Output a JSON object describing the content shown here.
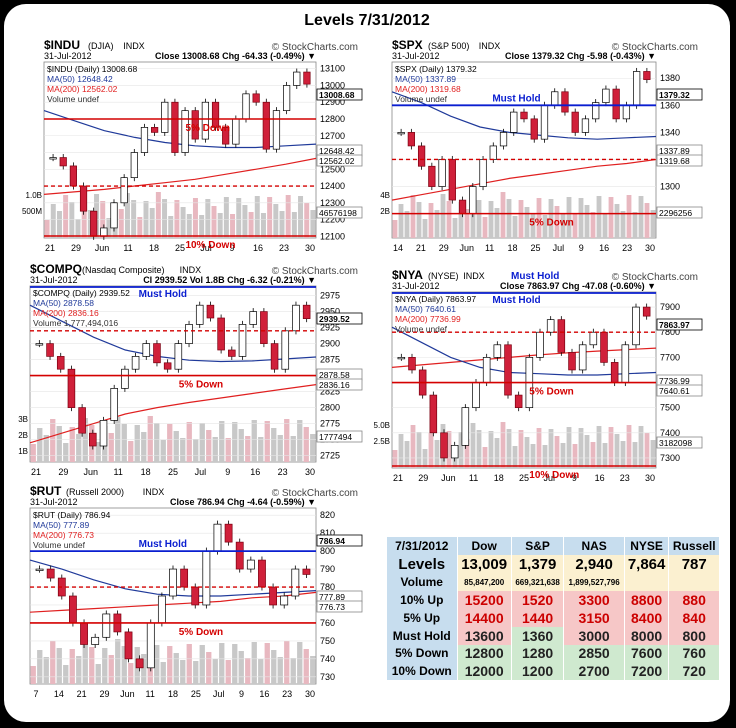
{
  "title": "Levels 7/31/2012",
  "charts": [
    {
      "id": "indu",
      "symbol": "$INDU",
      "name": "(DJIA)",
      "exchange": "INDX",
      "site": "© StockCharts.com",
      "date": "31-Jul-2012",
      "close_line": "Close 13008.68 Chg -64.33 (-0.49%) ▼",
      "legend": [
        "$INDU (Daily) 13008.68",
        "MA(50) 12648.42",
        "MA(200) 12562.02",
        "Volume undef"
      ],
      "y_ticks": [
        "13100",
        "13000",
        "12900",
        "12800",
        "12700",
        "12600",
        "12500",
        "12400",
        "12300",
        "12200",
        "12100"
      ],
      "y_range": [
        12090,
        13140
      ],
      "price_tags": [
        "13008.68",
        "12648.42",
        "12562.02",
        "46576198"
      ],
      "vol_labels": [
        "1.0B",
        "500M"
      ],
      "x_labels": [
        "21",
        "29",
        "Jun",
        "11",
        "18",
        "25",
        "Jul",
        "9",
        "16",
        "23",
        "30"
      ],
      "level_lines": [
        {
          "label": "5% Down",
          "value": 12800,
          "style": "solid"
        },
        {
          "label": "",
          "value": 12400,
          "style": "dashed"
        },
        {
          "label": "10% Down",
          "value": 12000,
          "style": "solid"
        }
      ],
      "ma50": [
        12850,
        12790,
        12730,
        12690,
        12660,
        12640,
        12630,
        12630,
        12640,
        12650
      ],
      "ma200": [
        12350,
        12365,
        12380,
        12400,
        12420,
        12440,
        12470,
        12500,
        12530,
        12565
      ],
      "price": [
        12570,
        12520,
        12400,
        12250,
        12100,
        12150,
        12300,
        12450,
        12600,
        12750,
        12720,
        12900,
        12600,
        12850,
        12680,
        12900,
        12750,
        12650,
        12800,
        12950,
        12900,
        12620,
        12850,
        13000,
        13080,
        13008
      ]
    },
    {
      "id": "spx",
      "symbol": "$SPX",
      "name": "(S&P 500)",
      "exchange": "INDX",
      "site": "© StockCharts.com",
      "date": "31-Jul-2012",
      "close_line": "Close 1379.32 Chg -5.98 (-0.43%) ▼",
      "legend": [
        "$SPX (Daily) 1379.32",
        "MA(50) 1337.89",
        "MA(200) 1319.68",
        "Volume undef"
      ],
      "y_ticks": [
        "1380",
        "1360",
        "1340",
        "1320",
        "1300",
        "1280"
      ],
      "y_range": [
        1262,
        1392
      ],
      "price_tags": [
        "1379.32",
        "1337.89",
        "1319.68",
        "2296256"
      ],
      "vol_labels": [
        "4B",
        "2B"
      ],
      "x_labels": [
        "14",
        "21",
        "29",
        "Jun",
        "11",
        "18",
        "25",
        "Jul",
        "9",
        "16",
        "23",
        "30"
      ],
      "level_lines": [
        {
          "label": "Must Hold",
          "value": 1360,
          "style": "blue"
        },
        {
          "label": "",
          "value": 1320,
          "style": "dashed"
        },
        {
          "label": "5% Down",
          "value": 1280,
          "style": "solid"
        }
      ],
      "ma50": [
        1370,
        1362,
        1352,
        1344,
        1340,
        1338,
        1336,
        1335,
        1336,
        1337
      ],
      "ma200": [
        1290,
        1294,
        1298,
        1302,
        1306,
        1309,
        1312,
        1315,
        1317,
        1320
      ],
      "price": [
        1340,
        1330,
        1315,
        1300,
        1320,
        1290,
        1280,
        1300,
        1320,
        1330,
        1340,
        1355,
        1350,
        1335,
        1360,
        1370,
        1355,
        1340,
        1350,
        1362,
        1372,
        1350,
        1360,
        1385,
        1379
      ]
    },
    {
      "id": "compq",
      "symbol": "$COMPQ",
      "name": "(Nasdaq Composite)",
      "exchange": "INDX",
      "site": "© StockCharts.com",
      "date": "31-Jul-2012",
      "close_line": "Cl 2939.52 Vol 1.8B Chg -6.32 (-0.21%) ▼",
      "legend": [
        "$COMPQ (Daily) 2939.52",
        "MA(50) 2878.58",
        "MA(200) 2836.16",
        "Volume 1,777,494,016"
      ],
      "y_ticks": [
        "2975",
        "2950",
        "2925",
        "2900",
        "2875",
        "2850",
        "2825",
        "2800",
        "2775",
        "2750",
        "2725"
      ],
      "y_range": [
        2715,
        2990
      ],
      "price_tags": [
        "2939.52",
        "2878.58",
        "2836.16",
        "1777494"
      ],
      "vol_labels": [
        "3B",
        "2B",
        "1B"
      ],
      "x_labels": [
        "21",
        "29",
        "Jun",
        "11",
        "18",
        "25",
        "Jul",
        "9",
        "16",
        "23",
        "30"
      ],
      "level_lines": [
        {
          "label": "Must Hold",
          "value": 2975,
          "style": "blue-top"
        },
        {
          "label": "",
          "value": 2920,
          "style": "dashed"
        },
        {
          "label": "5% Down",
          "value": 2850,
          "style": "solid"
        }
      ],
      "ma50": [
        2960,
        2935,
        2910,
        2890,
        2880,
        2874,
        2872,
        2873,
        2876,
        2879
      ],
      "ma200": [
        2745,
        2760,
        2775,
        2790,
        2800,
        2808,
        2815,
        2822,
        2829,
        2836
      ],
      "price": [
        2900,
        2880,
        2860,
        2800,
        2760,
        2740,
        2780,
        2830,
        2860,
        2880,
        2900,
        2870,
        2860,
        2900,
        2930,
        2960,
        2940,
        2890,
        2880,
        2930,
        2950,
        2900,
        2860,
        2920,
        2960,
        2939
      ]
    },
    {
      "id": "nya",
      "symbol": "$NYA",
      "name": "(NYSE)",
      "exchange": "INDX",
      "must_hold_title": "Must Hold",
      "site": "© StockCharts.com",
      "date": "31-Jul-2012",
      "close_line": "Close 7863.97 Chg -47.08 (-0.60%) ▼",
      "legend": [
        "$NYA (Daily) 7863.97",
        "MA(50) 7640.61",
        "MA(200) 7736.99",
        "Volume undef"
      ],
      "y_ticks": [
        "7900",
        "7800",
        "7700",
        "7600",
        "7500",
        "7400",
        "7300"
      ],
      "y_range": [
        7260,
        7960
      ],
      "price_tags": [
        "7863.97",
        "7736.99",
        "7640.61",
        "3182098"
      ],
      "vol_labels": [
        "5.0B",
        "2.5B"
      ],
      "x_labels": [
        "21",
        "29",
        "Jun",
        "11",
        "18",
        "25",
        "Jul",
        "9",
        "16",
        "23",
        "30"
      ],
      "level_lines": [
        {
          "label": "Must Hold",
          "value": 7960,
          "style": "blue-top"
        },
        {
          "label": "",
          "value": 7800,
          "style": "dashed"
        },
        {
          "label": "5% Down",
          "value": 7600,
          "style": "solid"
        },
        {
          "label": "10% Down",
          "value": 7200,
          "style": "solid"
        }
      ],
      "ma50": [
        7820,
        7760,
        7700,
        7660,
        7640,
        7635,
        7630,
        7630,
        7635,
        7640
      ],
      "ma200": [
        7660,
        7670,
        7680,
        7690,
        7700,
        7710,
        7718,
        7725,
        7731,
        7737
      ],
      "price": [
        7700,
        7650,
        7550,
        7400,
        7300,
        7350,
        7500,
        7600,
        7700,
        7750,
        7550,
        7500,
        7700,
        7800,
        7850,
        7720,
        7650,
        7750,
        7800,
        7680,
        7600,
        7750,
        7900,
        7864
      ]
    },
    {
      "id": "rut",
      "symbol": "$RUT",
      "name": "(Russell 2000)",
      "exchange": "INDX",
      "site": "© StockCharts.com",
      "date": "31-Jul-2012",
      "close_line": "Close 786.94 Chg -4.64 (-0.59%) ▼",
      "legend": [
        "$RUT (Daily) 786.94",
        "MA(50) 777.89",
        "MA(200) 776.73",
        "Volume undef"
      ],
      "y_ticks": [
        "820",
        "810",
        "800",
        "790",
        "780",
        "770",
        "760",
        "750",
        "740",
        "730"
      ],
      "y_range": [
        726,
        824
      ],
      "price_tags": [
        "786.94",
        "777.89",
        "776.73"
      ],
      "vol_labels": [],
      "x_labels": [
        "7",
        "14",
        "21",
        "29",
        "Jun",
        "11",
        "18",
        "25",
        "Jul",
        "9",
        "16",
        "23",
        "30"
      ],
      "level_lines": [
        {
          "label": "Must Hold",
          "value": 800,
          "style": "blue"
        },
        {
          "label": "",
          "value": 780,
          "style": "dashed"
        },
        {
          "label": "5% Down",
          "value": 760,
          "style": "solid"
        }
      ],
      "ma50": [
        795,
        790,
        784,
        779,
        776,
        775,
        775,
        776,
        777,
        778
      ],
      "ma200": [
        766,
        767,
        768,
        769,
        770,
        771,
        772,
        774,
        775,
        777
      ],
      "price": [
        790,
        785,
        775,
        760,
        748,
        752,
        765,
        755,
        740,
        735,
        760,
        775,
        790,
        780,
        770,
        800,
        815,
        805,
        790,
        795,
        780,
        770,
        775,
        790,
        787
      ]
    }
  ],
  "table": {
    "header": [
      "7/31/2012",
      "Dow",
      "S&P",
      "NAS",
      "NYSE",
      "Russell"
    ],
    "rows": [
      {
        "label": "Levels",
        "values": [
          "13,009",
          "1,379",
          "2,940",
          "7,864",
          "787"
        ],
        "kind": "lv"
      },
      {
        "label": "Volume",
        "values": [
          "85,847,200",
          "669,321,638",
          "1,899,527,796",
          "",
          ""
        ],
        "kind": "vol"
      },
      {
        "label": "10% Up",
        "values": [
          "15200",
          "1520",
          "3300",
          "8800",
          "880"
        ],
        "kind": "red"
      },
      {
        "label": "5% Up",
        "values": [
          "14400",
          "1440",
          "3150",
          "8400",
          "840"
        ],
        "kind": "red"
      },
      {
        "label": "Must Hold",
        "values": [
          "13600",
          "1360",
          "3000",
          "8000",
          "800"
        ],
        "kind": "mh"
      },
      {
        "label": "5% Down",
        "values": [
          "12800",
          "1280",
          "2850",
          "7600",
          "760"
        ],
        "kind": "grn"
      },
      {
        "label": "10% Down",
        "values": [
          "12000",
          "1200",
          "2700",
          "7200",
          "720"
        ],
        "kind": "grn"
      }
    ]
  }
}
